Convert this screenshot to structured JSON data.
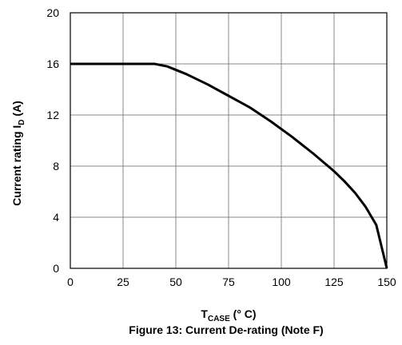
{
  "chart_data": {
    "type": "line",
    "title": "",
    "caption": "Figure 13: Current De-rating (Note F)",
    "xlabel": {
      "main": "T",
      "sub": "CASE",
      "suffix": " (°  C)"
    },
    "ylabel": {
      "main": "Current rating I",
      "sub": "D",
      "suffix": " (A)"
    },
    "xlim": [
      0,
      150
    ],
    "ylim": [
      0,
      20
    ],
    "x_ticks": [
      0,
      25,
      50,
      75,
      100,
      125,
      150
    ],
    "y_ticks": [
      0,
      4,
      8,
      12,
      16,
      20
    ],
    "x_tick_labels": [
      "0",
      "25",
      "50",
      "75",
      "100",
      "125",
      "150"
    ],
    "y_tick_labels": [
      "0",
      "4",
      "8",
      "12",
      "16",
      "20"
    ],
    "grid": true,
    "legend": "none",
    "colors": {
      "line": "#000000",
      "grid": "#888888",
      "frame": "#000000"
    },
    "series": [
      {
        "points": [
          [
            0,
            16
          ],
          [
            40,
            16
          ],
          [
            46,
            15.8
          ],
          [
            55,
            15.2
          ],
          [
            65,
            14.4
          ],
          [
            75,
            13.5
          ],
          [
            85,
            12.6
          ],
          [
            95,
            11.5
          ],
          [
            105,
            10.3
          ],
          [
            115,
            9.0
          ],
          [
            125,
            7.6
          ],
          [
            130,
            6.8
          ],
          [
            135,
            5.9
          ],
          [
            140,
            4.8
          ],
          [
            145,
            3.4
          ],
          [
            147.5,
            1.7
          ],
          [
            150,
            0
          ]
        ]
      }
    ]
  }
}
